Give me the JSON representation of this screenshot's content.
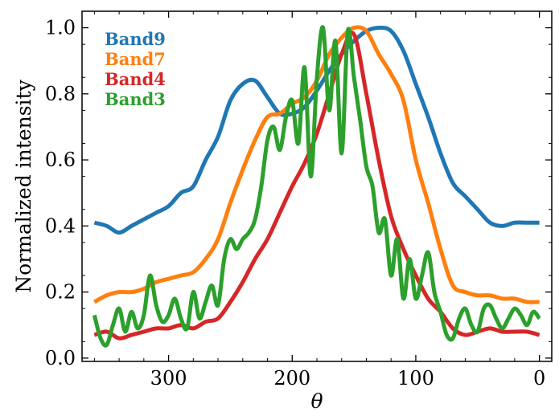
{
  "chart_data": {
    "type": "line",
    "xlabel": "θ",
    "ylabel": "Normalized intensity",
    "xlim": [
      370,
      -10
    ],
    "ylim": [
      -0.01,
      1.05
    ],
    "x_ticks": [
      300,
      200,
      100,
      0
    ],
    "y_ticks": [
      0.0,
      0.2,
      0.4,
      0.6,
      0.8,
      1.0
    ],
    "x_tick_labels": [
      "300",
      "200",
      "100",
      "0"
    ],
    "y_tick_labels": [
      "0.0",
      "0.2",
      "0.4",
      "0.6",
      "0.8",
      "1.0"
    ],
    "grid": false,
    "legend_position": "top-left",
    "series": [
      {
        "name": "Band9",
        "color": "#1f77b4",
        "x": [
          360,
          350,
          340,
          330,
          320,
          310,
          300,
          290,
          280,
          270,
          260,
          250,
          240,
          230,
          220,
          210,
          200,
          190,
          180,
          170,
          160,
          150,
          140,
          130,
          120,
          110,
          100,
          90,
          80,
          70,
          60,
          50,
          40,
          30,
          20,
          10,
          0
        ],
        "y": [
          0.41,
          0.4,
          0.38,
          0.4,
          0.42,
          0.44,
          0.46,
          0.5,
          0.52,
          0.6,
          0.67,
          0.78,
          0.83,
          0.84,
          0.79,
          0.74,
          0.74,
          0.76,
          0.81,
          0.87,
          0.92,
          0.96,
          0.99,
          1.0,
          0.99,
          0.93,
          0.83,
          0.73,
          0.62,
          0.53,
          0.49,
          0.45,
          0.41,
          0.4,
          0.41,
          0.41,
          0.41
        ]
      },
      {
        "name": "Band7",
        "color": "#ff7f0e",
        "x": [
          360,
          350,
          340,
          330,
          320,
          310,
          300,
          290,
          280,
          270,
          260,
          250,
          240,
          230,
          220,
          210,
          200,
          190,
          180,
          170,
          160,
          150,
          140,
          130,
          120,
          110,
          100,
          90,
          80,
          70,
          60,
          50,
          40,
          30,
          20,
          10,
          0
        ],
        "y": [
          0.17,
          0.19,
          0.2,
          0.2,
          0.21,
          0.23,
          0.24,
          0.25,
          0.26,
          0.3,
          0.36,
          0.47,
          0.57,
          0.66,
          0.73,
          0.74,
          0.77,
          0.79,
          0.84,
          0.92,
          0.97,
          1.0,
          0.99,
          0.92,
          0.86,
          0.78,
          0.6,
          0.47,
          0.33,
          0.22,
          0.2,
          0.19,
          0.19,
          0.18,
          0.18,
          0.17,
          0.17
        ]
      },
      {
        "name": "Band4",
        "color": "#d62728",
        "x": [
          360,
          350,
          340,
          330,
          320,
          310,
          300,
          290,
          280,
          270,
          260,
          250,
          240,
          230,
          220,
          210,
          200,
          190,
          180,
          170,
          160,
          150,
          140,
          130,
          120,
          110,
          100,
          90,
          80,
          70,
          60,
          50,
          40,
          30,
          20,
          10,
          0
        ],
        "y": [
          0.07,
          0.08,
          0.06,
          0.07,
          0.08,
          0.09,
          0.09,
          0.1,
          0.09,
          0.11,
          0.12,
          0.17,
          0.23,
          0.3,
          0.36,
          0.44,
          0.52,
          0.59,
          0.68,
          0.8,
          0.92,
          0.98,
          0.8,
          0.6,
          0.43,
          0.33,
          0.25,
          0.18,
          0.14,
          0.09,
          0.07,
          0.08,
          0.09,
          0.08,
          0.08,
          0.08,
          0.07
        ]
      },
      {
        "name": "Band3",
        "color": "#2ca02c",
        "x": [
          360,
          355,
          350,
          345,
          340,
          335,
          330,
          325,
          320,
          315,
          310,
          305,
          300,
          295,
          290,
          285,
          280,
          275,
          270,
          265,
          260,
          255,
          250,
          245,
          240,
          235,
          230,
          225,
          220,
          215,
          210,
          205,
          200,
          195,
          190,
          185,
          180,
          175,
          170,
          165,
          160,
          155,
          150,
          145,
          140,
          135,
          130,
          125,
          120,
          115,
          110,
          105,
          100,
          95,
          90,
          85,
          80,
          75,
          70,
          65,
          60,
          55,
          50,
          45,
          40,
          35,
          30,
          25,
          20,
          15,
          10,
          5,
          0
        ],
        "y": [
          0.13,
          0.06,
          0.04,
          0.1,
          0.15,
          0.08,
          0.14,
          0.09,
          0.13,
          0.25,
          0.16,
          0.11,
          0.13,
          0.18,
          0.12,
          0.09,
          0.2,
          0.12,
          0.17,
          0.22,
          0.16,
          0.3,
          0.36,
          0.33,
          0.36,
          0.38,
          0.42,
          0.52,
          0.66,
          0.7,
          0.63,
          0.73,
          0.78,
          0.65,
          0.88,
          0.55,
          0.85,
          1.0,
          0.75,
          0.96,
          0.62,
          0.99,
          0.85,
          0.72,
          0.58,
          0.52,
          0.38,
          0.42,
          0.25,
          0.36,
          0.18,
          0.3,
          0.18,
          0.25,
          0.32,
          0.2,
          0.14,
          0.07,
          0.06,
          0.12,
          0.15,
          0.1,
          0.08,
          0.15,
          0.16,
          0.12,
          0.09,
          0.12,
          0.15,
          0.13,
          0.1,
          0.14,
          0.12
        ]
      }
    ]
  }
}
